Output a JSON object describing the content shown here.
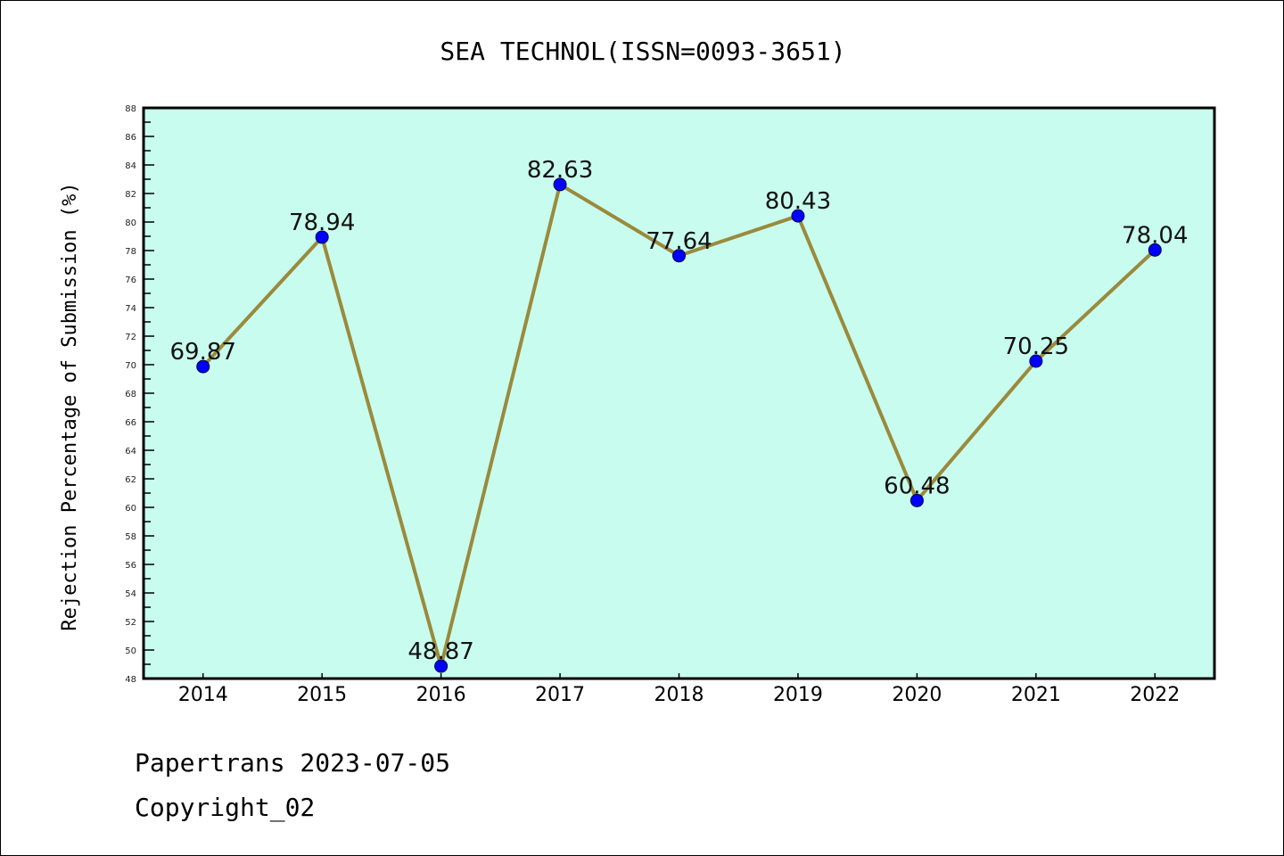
{
  "chart_data": {
    "type": "line",
    "title": "SEA TECHNOL(ISSN=0093-3651)",
    "xlabel": "",
    "ylabel": "Rejection Percentage of Submission (%)",
    "categories": [
      "2014",
      "2015",
      "2016",
      "2017",
      "2018",
      "2019",
      "2020",
      "2021",
      "2022"
    ],
    "series": [
      {
        "name": "Rejection Percentage",
        "values": [
          69.87,
          78.94,
          48.87,
          82.63,
          77.64,
          80.43,
          60.48,
          70.25,
          78.04
        ]
      }
    ],
    "data_labels": [
      "69.87",
      "78.94",
      "48.87",
      "82.63",
      "77.64",
      "80.43",
      "60.48",
      "70.25",
      "78.04"
    ],
    "ylim": [
      48,
      88
    ],
    "yticks": [
      "48",
      "50",
      "52",
      "54",
      "56",
      "58",
      "60",
      "62",
      "64",
      "66",
      "68",
      "70",
      "72",
      "74",
      "76",
      "78",
      "80",
      "82",
      "84",
      "86",
      "88"
    ],
    "grid": false,
    "legend": "none",
    "colors": {
      "plot_bg": "#c8fcee",
      "line": "#9a8a3c",
      "marker": "#0000ff"
    }
  },
  "footer": {
    "line1": "Papertrans 2023-07-05",
    "line2": "Copyright_02"
  }
}
